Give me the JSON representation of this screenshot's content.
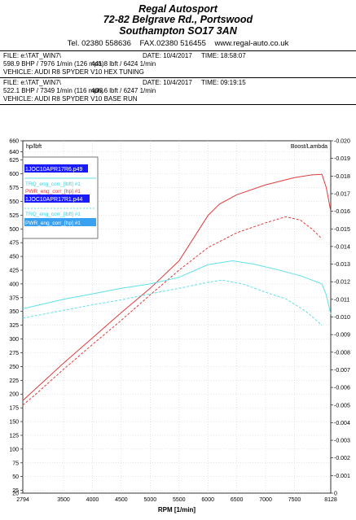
{
  "header": {
    "company_name": "Regal Autosport",
    "address_line1": "72-82 Belgrave Rd., Portswood",
    "address_line2": "Southampton SO17 3AN",
    "tel": "Tel. 02380 558636",
    "fax": "FAX.02380 516455",
    "web": "www.regal-auto.co.uk"
  },
  "runs": [
    {
      "file": "FILE: e:\\TAT_WIN7\\",
      "date": "DATE: 10/4/2017",
      "time": "TIME: 18:58:07",
      "power": "598.9 BHP / 7976 1/min (126 mph)",
      "torque": "441.8 lbft / 6424 1/min",
      "vehicle": "VEHICLE: AUDI R8 SPYDER V10 HEX TUNING"
    },
    {
      "file": "FILE: e:\\TAT_WIN7\\",
      "date": "DATE: 10/4/2017",
      "time": "TIME: 09:19:15",
      "power": "522.1 BHP / 7349 1/min (116 mph)",
      "torque": "406.6 lbft / 6247 1/min",
      "vehicle": "VEHICLE: AUDI R8 SPYDER V10 BASE RUN"
    }
  ],
  "chart_data": {
    "type": "line",
    "xlabel": "RPM  [1/min]",
    "left_axis_label": "hp/lbft",
    "right_axis_label": "Boost/Lambda",
    "xlim": [
      2794,
      8128
    ],
    "ylim": [
      20,
      660
    ],
    "y2lim": [
      0,
      0.02
    ],
    "x_ticks": [
      2794,
      3500,
      4000,
      4500,
      5000,
      5500,
      6000,
      6500,
      7000,
      7500,
      8128
    ],
    "y_ticks": [
      20,
      25,
      50,
      75,
      100,
      125,
      150,
      175,
      200,
      225,
      250,
      275,
      300,
      325,
      350,
      375,
      400,
      425,
      450,
      475,
      500,
      525,
      550,
      575,
      600,
      625,
      640,
      660
    ],
    "y2_ticks": [
      "0",
      "0.001",
      "0.002",
      "0.003",
      "0.004",
      "0.005",
      "0.006",
      "0.007",
      "0.008",
      "0.009",
      "0.010",
      "0.011",
      "0.012",
      "0.013",
      "0.014",
      "0.015",
      "0.016",
      "0.017",
      "0.018",
      "0.019",
      "0.020"
    ],
    "grid": true,
    "legend_placement": "top-left",
    "legend": {
      "file1": "1JOC10APR17R6.p49",
      "file1_entries": [
        "TRQ_eng_corr_[lbft] #1",
        "PWR_eng_corr_[hp] #1"
      ],
      "file2": "1JOC10APR17R1.p44",
      "file2_entries": [
        "TRQ_eng_corr_[lbft] #1",
        "PWR_eng_corr_[hp] #1"
      ]
    },
    "series": [
      {
        "name": "PWR_eng_corr_[hp] #1",
        "file": "1JOC10APR17R6.p49",
        "color": "#e03c3c",
        "dash": false,
        "x": [
          2794,
          3000,
          3500,
          4000,
          4500,
          5000,
          5500,
          6000,
          6200,
          6500,
          7000,
          7500,
          7800,
          7976,
          8050,
          8128
        ],
        "y": [
          188,
          208,
          256,
          302,
          348,
          392,
          442,
          524,
          545,
          562,
          580,
          593,
          598,
          599,
          575,
          532
        ]
      },
      {
        "name": "PWR_eng_corr_[hp] #1",
        "file": "1JOC10APR17R1.p44",
        "color": "#e03c3c",
        "dash": true,
        "x": [
          2794,
          3000,
          3500,
          4000,
          4500,
          5000,
          5500,
          6000,
          6500,
          7000,
          7349,
          7600,
          7800,
          7976
        ],
        "y": [
          180,
          198,
          245,
          290,
          334,
          380,
          425,
          466,
          493,
          511,
          522,
          516,
          500,
          482
        ]
      },
      {
        "name": "TRQ_eng_corr_[lbft] #1",
        "file": "1JOC10APR17R6.p49",
        "color": "#5ee0e8",
        "dash": false,
        "x": [
          2794,
          3000,
          3500,
          4000,
          4500,
          5000,
          5500,
          6000,
          6424,
          6800,
          7200,
          7600,
          7976,
          8050,
          8128
        ],
        "y": [
          355,
          360,
          372,
          382,
          392,
          400,
          412,
          435,
          442,
          436,
          426,
          415,
          400,
          380,
          345
        ]
      },
      {
        "name": "TRQ_eng_corr_[lbft] #1",
        "file": "1JOC10APR17R1.p44",
        "color": "#5ee0e8",
        "dash": true,
        "x": [
          2794,
          3000,
          3500,
          4000,
          4500,
          5000,
          5500,
          6000,
          6247,
          6600,
          7000,
          7349,
          7700,
          7976
        ],
        "y": [
          338,
          342,
          352,
          362,
          371,
          382,
          392,
          403,
          407,
          400,
          385,
          373,
          350,
          325
        ]
      }
    ]
  }
}
